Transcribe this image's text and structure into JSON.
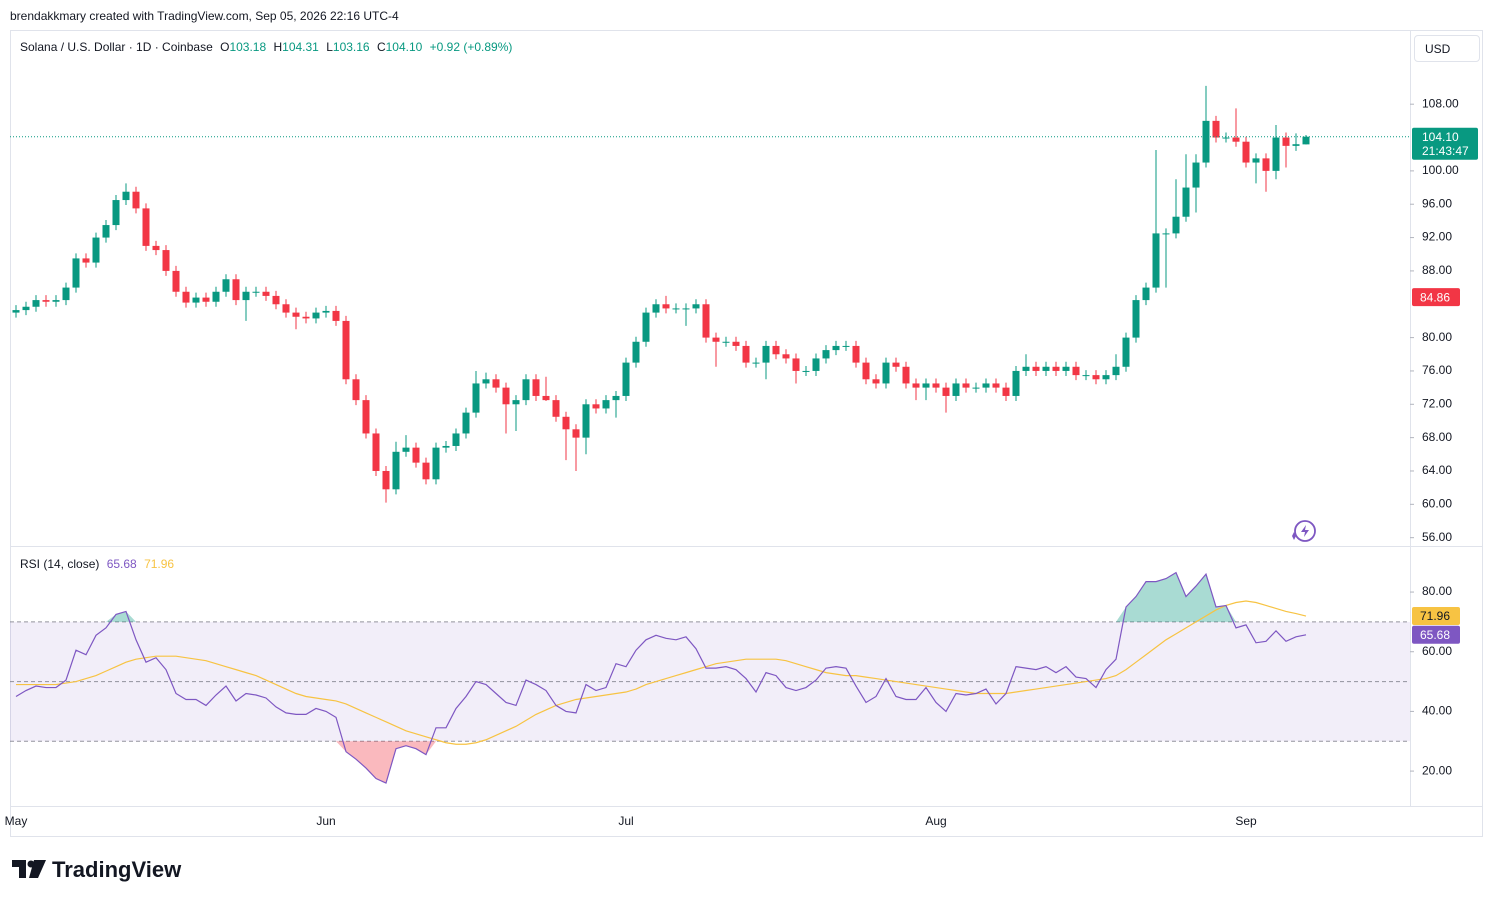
{
  "header": {
    "credit": "brendakkmary created with TradingView.com, Sep 05, 2026 22:16 UTC-4",
    "brand": "TradingView",
    "currency_button": "USD"
  },
  "chart_data": [
    {
      "type": "candlestick",
      "title": "Solana / U.S. Dollar · 1D · Coinbase",
      "ohlc_keys": [
        "O",
        "H",
        "L",
        "C"
      ],
      "last_label": "104.10",
      "change": "+0.92 (+0.89%)",
      "countdown": "21:43:47",
      "marker_value": 84.86,
      "up_color": "#089981",
      "down_color": "#f23645",
      "marker_color": "#f23645",
      "ylim": [
        55,
        116.9
      ],
      "grid": false,
      "yticks": [
        {
          "value": 108,
          "label": "108.00"
        },
        {
          "value": 100,
          "label": "100.00"
        },
        {
          "value": 96,
          "label": "96.00"
        },
        {
          "value": 92,
          "label": "92.00"
        },
        {
          "value": 88,
          "label": "88.00"
        },
        {
          "value": 80,
          "label": "80.00"
        },
        {
          "value": 76,
          "label": "76.00"
        },
        {
          "value": 72,
          "label": "72.00"
        },
        {
          "value": 68,
          "label": "68.00"
        },
        {
          "value": 64,
          "label": "64.00"
        },
        {
          "value": 60,
          "label": "60.00"
        },
        {
          "value": 56,
          "label": "56.00"
        }
      ],
      "categories": [
        "May",
        null,
        null,
        null,
        null,
        null,
        null,
        null,
        null,
        null,
        null,
        null,
        null,
        null,
        null,
        null,
        null,
        null,
        null,
        null,
        null,
        null,
        null,
        null,
        null,
        null,
        null,
        null,
        null,
        null,
        null,
        "Jun",
        null,
        null,
        null,
        null,
        null,
        null,
        null,
        null,
        null,
        null,
        null,
        null,
        null,
        null,
        null,
        null,
        null,
        null,
        null,
        null,
        null,
        null,
        null,
        null,
        null,
        null,
        null,
        null,
        null,
        "Jul",
        null,
        null,
        null,
        null,
        null,
        null,
        null,
        null,
        null,
        null,
        null,
        null,
        null,
        null,
        null,
        null,
        null,
        null,
        null,
        null,
        null,
        null,
        null,
        null,
        null,
        null,
        null,
        null,
        null,
        null,
        "Aug",
        null,
        null,
        null,
        null,
        null,
        null,
        null,
        null,
        null,
        null,
        null,
        null,
        null,
        null,
        null,
        null,
        null,
        null,
        null,
        null,
        null,
        null,
        null,
        null,
        null,
        null,
        null,
        null,
        null,
        null,
        "Sep",
        null,
        null,
        null,
        null,
        null,
        null
      ],
      "candles": [
        [
          83.0,
          83.9,
          82.4,
          83.3
        ],
        [
          83.3,
          84.3,
          82.7,
          83.7
        ],
        [
          83.7,
          85.1,
          83.1,
          84.5
        ],
        [
          84.5,
          85.1,
          83.7,
          84.3
        ],
        [
          84.3,
          85.1,
          83.7,
          84.5
        ],
        [
          84.5,
          86.6,
          83.9,
          86.0
        ],
        [
          86.0,
          90.1,
          85.4,
          89.5
        ],
        [
          89.5,
          90.1,
          88.4,
          89.0
        ],
        [
          89.0,
          92.6,
          88.4,
          92.0
        ],
        [
          92.0,
          94.1,
          91.4,
          93.5
        ],
        [
          93.5,
          97.1,
          92.9,
          96.5
        ],
        [
          96.5,
          98.5,
          95.9,
          97.5
        ],
        [
          97.5,
          98.1,
          94.9,
          95.5
        ],
        [
          95.5,
          96.1,
          90.4,
          91.0
        ],
        [
          91.0,
          91.6,
          89.9,
          90.5
        ],
        [
          90.5,
          91.1,
          87.4,
          88.0
        ],
        [
          88.0,
          88.6,
          84.9,
          85.5
        ],
        [
          85.5,
          86.1,
          83.6,
          84.2
        ],
        [
          84.2,
          85.4,
          83.6,
          84.8
        ],
        [
          84.8,
          85.4,
          83.7,
          84.3
        ],
        [
          84.3,
          86.1,
          83.7,
          85.5
        ],
        [
          85.5,
          87.6,
          84.9,
          87.0
        ],
        [
          87.0,
          87.6,
          83.9,
          84.5
        ],
        [
          84.5,
          86.1,
          82.0,
          85.5
        ],
        [
          85.5,
          86.1,
          84.9,
          85.5
        ],
        [
          85.5,
          86.1,
          84.4,
          85.0
        ],
        [
          85.0,
          85.6,
          83.4,
          84.0
        ],
        [
          84.0,
          84.6,
          82.4,
          83.0
        ],
        [
          83.0,
          83.6,
          81.0,
          82.5
        ],
        [
          82.5,
          83.1,
          81.7,
          82.3
        ],
        [
          82.3,
          83.6,
          81.7,
          83.0
        ],
        [
          83.0,
          83.8,
          82.4,
          83.2
        ],
        [
          83.2,
          83.8,
          81.4,
          82.0
        ],
        [
          82.0,
          82.6,
          74.4,
          75.0
        ],
        [
          75.0,
          75.6,
          71.9,
          72.5
        ],
        [
          72.5,
          73.1,
          67.9,
          68.5
        ],
        [
          68.5,
          69.1,
          63.4,
          64.0
        ],
        [
          64.0,
          64.6,
          60.2,
          61.8
        ],
        [
          61.8,
          67.5,
          61.2,
          66.3
        ],
        [
          66.3,
          68.3,
          65.7,
          66.8
        ],
        [
          66.8,
          67.4,
          64.4,
          65.0
        ],
        [
          65.0,
          65.6,
          62.4,
          63.0
        ],
        [
          63.0,
          67.4,
          62.4,
          66.8
        ],
        [
          66.8,
          67.6,
          66.2,
          67.0
        ],
        [
          67.0,
          69.1,
          66.4,
          68.5
        ],
        [
          68.5,
          71.6,
          67.9,
          71.0
        ],
        [
          71.0,
          76.0,
          70.4,
          74.5
        ],
        [
          74.5,
          75.8,
          73.9,
          75.0
        ],
        [
          75.0,
          75.6,
          73.4,
          74.0
        ],
        [
          74.0,
          74.6,
          68.5,
          72.0
        ],
        [
          72.0,
          73.1,
          68.8,
          72.5
        ],
        [
          72.5,
          75.6,
          71.9,
          75.0
        ],
        [
          75.0,
          75.6,
          72.4,
          73.0
        ],
        [
          73.0,
          75.3,
          72.4,
          72.5
        ],
        [
          72.5,
          73.1,
          69.9,
          70.5
        ],
        [
          70.5,
          71.1,
          65.3,
          69.0
        ],
        [
          69.0,
          69.6,
          64.0,
          68.0
        ],
        [
          68.0,
          72.6,
          66.0,
          72.0
        ],
        [
          72.0,
          72.6,
          70.9,
          71.5
        ],
        [
          71.5,
          73.1,
          70.9,
          72.5
        ],
        [
          72.5,
          73.6,
          70.4,
          73.0
        ],
        [
          73.0,
          77.6,
          72.4,
          77.0
        ],
        [
          77.0,
          80.1,
          76.4,
          79.5
        ],
        [
          79.5,
          83.6,
          78.9,
          83.0
        ],
        [
          83.0,
          84.6,
          82.4,
          84.0
        ],
        [
          84.0,
          85.0,
          82.9,
          83.5
        ],
        [
          83.5,
          84.1,
          82.9,
          83.5
        ],
        [
          83.5,
          84.1,
          81.4,
          83.5
        ],
        [
          83.5,
          84.6,
          82.9,
          84.0
        ],
        [
          84.0,
          84.6,
          79.4,
          80.0
        ],
        [
          80.0,
          80.6,
          76.5,
          79.5
        ],
        [
          79.5,
          80.1,
          78.9,
          79.5
        ],
        [
          79.5,
          80.1,
          78.4,
          79.0
        ],
        [
          79.0,
          79.6,
          76.4,
          77.0
        ],
        [
          77.0,
          77.6,
          76.4,
          77.0
        ],
        [
          77.0,
          79.6,
          75.0,
          79.0
        ],
        [
          79.0,
          79.6,
          77.4,
          78.0
        ],
        [
          78.0,
          78.6,
          76.9,
          77.5
        ],
        [
          77.5,
          78.1,
          74.5,
          76.0
        ],
        [
          76.0,
          76.6,
          75.4,
          76.0
        ],
        [
          76.0,
          78.1,
          75.4,
          77.5
        ],
        [
          77.5,
          79.1,
          76.9,
          78.5
        ],
        [
          78.5,
          79.6,
          77.9,
          79.0
        ],
        [
          79.0,
          79.6,
          78.4,
          79.0
        ],
        [
          79.0,
          79.6,
          76.4,
          77.0
        ],
        [
          77.0,
          77.6,
          74.4,
          75.0
        ],
        [
          75.0,
          75.6,
          73.9,
          74.5
        ],
        [
          74.5,
          77.6,
          73.9,
          77.0
        ],
        [
          77.0,
          77.6,
          75.9,
          76.5
        ],
        [
          76.5,
          77.1,
          73.9,
          74.5
        ],
        [
          74.5,
          75.1,
          72.5,
          74.0
        ],
        [
          74.0,
          75.1,
          72.5,
          74.5
        ],
        [
          74.5,
          75.1,
          73.4,
          74.0
        ],
        [
          74.0,
          74.6,
          71.0,
          73.0
        ],
        [
          73.0,
          75.1,
          72.4,
          74.5
        ],
        [
          74.5,
          75.1,
          73.4,
          74.0
        ],
        [
          74.0,
          74.6,
          73.4,
          74.0
        ],
        [
          74.0,
          75.1,
          73.4,
          74.5
        ],
        [
          74.5,
          75.1,
          73.4,
          74.0
        ],
        [
          74.0,
          74.6,
          72.4,
          73.0
        ],
        [
          73.0,
          76.6,
          72.4,
          76.0
        ],
        [
          76.0,
          78.0,
          75.4,
          76.5
        ],
        [
          76.5,
          77.1,
          75.4,
          76.0
        ],
        [
          76.0,
          77.1,
          75.4,
          76.5
        ],
        [
          76.5,
          77.1,
          75.4,
          76.0
        ],
        [
          76.0,
          77.1,
          75.4,
          76.5
        ],
        [
          76.5,
          77.1,
          74.9,
          75.5
        ],
        [
          75.5,
          76.1,
          74.9,
          75.5
        ],
        [
          75.5,
          76.1,
          74.4,
          75.0
        ],
        [
          75.0,
          76.1,
          74.4,
          75.5
        ],
        [
          75.5,
          78.0,
          74.9,
          76.5
        ],
        [
          76.5,
          80.6,
          75.9,
          80.0
        ],
        [
          80.0,
          85.1,
          79.4,
          84.5
        ],
        [
          84.5,
          86.6,
          83.9,
          86.0
        ],
        [
          86.0,
          102.5,
          85.4,
          92.5
        ],
        [
          92.5,
          93.1,
          86.0,
          92.5
        ],
        [
          92.5,
          99.0,
          91.9,
          94.5
        ],
        [
          94.5,
          102.0,
          93.9,
          98.0
        ],
        [
          98.0,
          102.0,
          95.0,
          101.0
        ],
        [
          101.0,
          110.2,
          100.4,
          106.0
        ],
        [
          106.0,
          106.6,
          103.4,
          104.0
        ],
        [
          104.0,
          104.6,
          103.4,
          104.0
        ],
        [
          104.0,
          107.5,
          102.9,
          103.5
        ],
        [
          103.5,
          104.1,
          100.4,
          101.0
        ],
        [
          101.0,
          102.1,
          98.5,
          101.5
        ],
        [
          101.5,
          102.1,
          97.5,
          100.0
        ],
        [
          100.0,
          105.5,
          99.0,
          104.0
        ],
        [
          104.0,
          104.6,
          100.4,
          103.0
        ],
        [
          103.0,
          104.5,
          102.4,
          103.2
        ],
        [
          103.18,
          104.31,
          103.16,
          104.1
        ]
      ]
    },
    {
      "type": "line",
      "title": "RSI (14, close)",
      "ylim": [
        8.3,
        95.1
      ],
      "levels": [
        70,
        50,
        30
      ],
      "band_color": "#7e57c2",
      "overbought_color": "#089981",
      "oversold_color": "#f23645",
      "yticks": [
        {
          "value": 80,
          "label": "80.00"
        },
        {
          "value": 60,
          "label": "60.00"
        },
        {
          "value": 40,
          "label": "40.00"
        },
        {
          "value": 20,
          "label": "20.00"
        }
      ],
      "series": [
        {
          "color": "#7e57c2",
          "values": [
            45,
            47,
            48.5,
            48,
            48,
            50.5,
            60.5,
            59,
            65.5,
            68,
            72.5,
            73.5,
            64,
            56.5,
            58,
            54,
            46,
            44,
            44,
            42,
            45.5,
            48.5,
            43.5,
            46,
            45.5,
            44.5,
            41.5,
            39.5,
            39,
            39,
            41,
            40,
            38,
            26.5,
            24,
            21,
            17.5,
            16,
            27.5,
            28.5,
            27.5,
            25.5,
            34.5,
            34.5,
            41,
            45,
            50,
            49,
            46,
            43,
            42,
            50.5,
            49,
            47,
            42,
            40,
            39.5,
            49,
            47,
            48,
            56,
            55,
            60.5,
            64,
            65.5,
            64.5,
            64,
            65,
            61,
            54.5,
            54.5,
            55,
            54,
            51,
            46.5,
            53,
            52,
            48,
            47,
            48,
            50.5,
            54.5,
            55,
            54.5,
            48.5,
            43,
            45,
            51,
            45,
            44,
            44,
            48,
            43,
            40,
            46,
            45.5,
            46,
            47.5,
            42.5,
            46,
            55,
            54.5,
            54,
            55,
            53,
            55,
            51.5,
            51,
            48,
            54,
            57.5,
            75,
            78.5,
            83.5,
            83.5,
            84.5,
            86.5,
            78.5,
            82,
            86,
            75,
            75.5,
            68,
            69,
            63,
            63.5,
            67,
            63.5,
            65,
            65.68
          ]
        },
        {
          "color": "#f7c343",
          "values": [
            49,
            49,
            49,
            49,
            49,
            49.5,
            50,
            51,
            52,
            53.5,
            55,
            56.5,
            57.5,
            58,
            58.5,
            58.5,
            58.5,
            58,
            57.5,
            57,
            56,
            55,
            54,
            53,
            52,
            50.5,
            49,
            47.5,
            46,
            45,
            44.5,
            44,
            43.5,
            42.5,
            41,
            39.5,
            38,
            36.5,
            35,
            33.5,
            32.5,
            31.5,
            30.5,
            29.5,
            29,
            29,
            29.5,
            30.5,
            32,
            33.5,
            35,
            37,
            39,
            40.5,
            42,
            43,
            44,
            44.5,
            45,
            45.5,
            46,
            46.5,
            47.5,
            49,
            50,
            51,
            52,
            53,
            54,
            55,
            56,
            56.5,
            57,
            57.5,
            57.5,
            57.5,
            57.5,
            57,
            56,
            55,
            54,
            53,
            52.5,
            52,
            52,
            51.5,
            51,
            50.5,
            50,
            49.5,
            49,
            48.5,
            48,
            47.5,
            47,
            46.5,
            46,
            46,
            46,
            46,
            46.5,
            47,
            47.5,
            48,
            48.5,
            49,
            49.5,
            50,
            50.5,
            51,
            52,
            54,
            56.5,
            59,
            61.5,
            64,
            66,
            68,
            70,
            72,
            74,
            75.5,
            76.5,
            77,
            76.5,
            75.5,
            74.5,
            73.5,
            72.8,
            71.96
          ]
        }
      ]
    }
  ]
}
